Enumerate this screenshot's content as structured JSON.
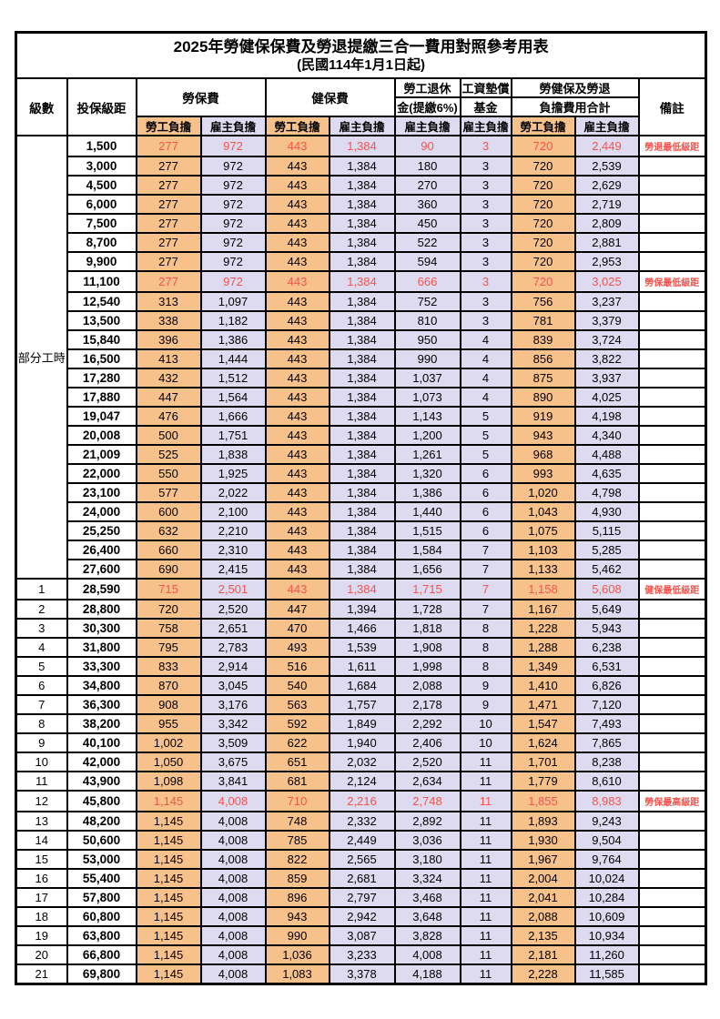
{
  "title": {
    "line1": "2025年勞健保保費及勞退提繳三合一費用對照參考用表",
    "line2": "(民國114年1月1日起)"
  },
  "colors": {
    "employee_column_bg": "#F7C18C",
    "employer_column_bg": "#DEDBF0",
    "highlight_text_red": "#F4534D",
    "grid_border": "#000000",
    "background": "#FFFFFF"
  },
  "header": {
    "level": "級數",
    "bracket": "投保級距",
    "labor_insurance": "勞保費",
    "health_insurance": "健保費",
    "pension_line1": "勞工退休",
    "pension_line2": "金(提繳6%)",
    "wage_fund_line1": "工資墊償",
    "wage_fund_line2": "基金",
    "total_line1": "勞健保及勞退",
    "total_line2": "負擔費用合計",
    "remark": "備註",
    "employee_share": "勞工負擔",
    "employer_share": "雇主負擔"
  },
  "table": {
    "part_time_label": "部分工時",
    "part_time_row_count": 23,
    "value_column_names": [
      "labor-ins-employee",
      "labor-ins-employer",
      "health-ins-employee",
      "health-ins-employer",
      "pension-employer",
      "wage-fund-employer",
      "total-employee",
      "total-employer"
    ],
    "rows": [
      {
        "level": null,
        "bracket": "1,500",
        "values": [
          "277",
          "972",
          "443",
          "1,384",
          "90",
          "3",
          "720",
          "2,449"
        ],
        "remark": "勞退最低級距",
        "red": true
      },
      {
        "level": null,
        "bracket": "3,000",
        "values": [
          "277",
          "972",
          "443",
          "1,384",
          "180",
          "3",
          "720",
          "2,539"
        ],
        "remark": "",
        "red": false
      },
      {
        "level": null,
        "bracket": "4,500",
        "values": [
          "277",
          "972",
          "443",
          "1,384",
          "270",
          "3",
          "720",
          "2,629"
        ],
        "remark": "",
        "red": false
      },
      {
        "level": null,
        "bracket": "6,000",
        "values": [
          "277",
          "972",
          "443",
          "1,384",
          "360",
          "3",
          "720",
          "2,719"
        ],
        "remark": "",
        "red": false
      },
      {
        "level": null,
        "bracket": "7,500",
        "values": [
          "277",
          "972",
          "443",
          "1,384",
          "450",
          "3",
          "720",
          "2,809"
        ],
        "remark": "",
        "red": false
      },
      {
        "level": null,
        "bracket": "8,700",
        "values": [
          "277",
          "972",
          "443",
          "1,384",
          "522",
          "3",
          "720",
          "2,881"
        ],
        "remark": "",
        "red": false
      },
      {
        "level": null,
        "bracket": "9,900",
        "values": [
          "277",
          "972",
          "443",
          "1,384",
          "594",
          "3",
          "720",
          "2,953"
        ],
        "remark": "",
        "red": false
      },
      {
        "level": null,
        "bracket": "11,100",
        "values": [
          "277",
          "972",
          "443",
          "1,384",
          "666",
          "3",
          "720",
          "3,025"
        ],
        "remark": "勞保最低級距",
        "red": true
      },
      {
        "level": null,
        "bracket": "12,540",
        "values": [
          "313",
          "1,097",
          "443",
          "1,384",
          "752",
          "3",
          "756",
          "3,237"
        ],
        "remark": "",
        "red": false
      },
      {
        "level": null,
        "bracket": "13,500",
        "values": [
          "338",
          "1,182",
          "443",
          "1,384",
          "810",
          "3",
          "781",
          "3,379"
        ],
        "remark": "",
        "red": false
      },
      {
        "level": null,
        "bracket": "15,840",
        "values": [
          "396",
          "1,386",
          "443",
          "1,384",
          "950",
          "4",
          "839",
          "3,724"
        ],
        "remark": "",
        "red": false
      },
      {
        "level": null,
        "bracket": "16,500",
        "values": [
          "413",
          "1,444",
          "443",
          "1,384",
          "990",
          "4",
          "856",
          "3,822"
        ],
        "remark": "",
        "red": false
      },
      {
        "level": null,
        "bracket": "17,280",
        "values": [
          "432",
          "1,512",
          "443",
          "1,384",
          "1,037",
          "4",
          "875",
          "3,937"
        ],
        "remark": "",
        "red": false
      },
      {
        "level": null,
        "bracket": "17,880",
        "values": [
          "447",
          "1,564",
          "443",
          "1,384",
          "1,073",
          "4",
          "890",
          "4,025"
        ],
        "remark": "",
        "red": false
      },
      {
        "level": null,
        "bracket": "19,047",
        "values": [
          "476",
          "1,666",
          "443",
          "1,384",
          "1,143",
          "5",
          "919",
          "4,198"
        ],
        "remark": "",
        "red": false
      },
      {
        "level": null,
        "bracket": "20,008",
        "values": [
          "500",
          "1,751",
          "443",
          "1,384",
          "1,200",
          "5",
          "943",
          "4,340"
        ],
        "remark": "",
        "red": false
      },
      {
        "level": null,
        "bracket": "21,009",
        "values": [
          "525",
          "1,838",
          "443",
          "1,384",
          "1,261",
          "5",
          "968",
          "4,488"
        ],
        "remark": "",
        "red": false
      },
      {
        "level": null,
        "bracket": "22,000",
        "values": [
          "550",
          "1,925",
          "443",
          "1,384",
          "1,320",
          "6",
          "993",
          "4,635"
        ],
        "remark": "",
        "red": false
      },
      {
        "level": null,
        "bracket": "23,100",
        "values": [
          "577",
          "2,022",
          "443",
          "1,384",
          "1,386",
          "6",
          "1,020",
          "4,798"
        ],
        "remark": "",
        "red": false
      },
      {
        "level": null,
        "bracket": "24,000",
        "values": [
          "600",
          "2,100",
          "443",
          "1,384",
          "1,440",
          "6",
          "1,043",
          "4,930"
        ],
        "remark": "",
        "red": false
      },
      {
        "level": null,
        "bracket": "25,250",
        "values": [
          "632",
          "2,210",
          "443",
          "1,384",
          "1,515",
          "6",
          "1,075",
          "5,115"
        ],
        "remark": "",
        "red": false
      },
      {
        "level": null,
        "bracket": "26,400",
        "values": [
          "660",
          "2,310",
          "443",
          "1,384",
          "1,584",
          "7",
          "1,103",
          "5,285"
        ],
        "remark": "",
        "red": false
      },
      {
        "level": null,
        "bracket": "27,600",
        "values": [
          "690",
          "2,415",
          "443",
          "1,384",
          "1,656",
          "7",
          "1,133",
          "5,462"
        ],
        "remark": "",
        "red": false
      },
      {
        "level": "1",
        "bracket": "28,590",
        "values": [
          "715",
          "2,501",
          "443",
          "1,384",
          "1,715",
          "7",
          "1,158",
          "5,608"
        ],
        "remark": "健保最低級距",
        "red": true
      },
      {
        "level": "2",
        "bracket": "28,800",
        "values": [
          "720",
          "2,520",
          "447",
          "1,394",
          "1,728",
          "7",
          "1,167",
          "5,649"
        ],
        "remark": "",
        "red": false
      },
      {
        "level": "3",
        "bracket": "30,300",
        "values": [
          "758",
          "2,651",
          "470",
          "1,466",
          "1,818",
          "8",
          "1,228",
          "5,943"
        ],
        "remark": "",
        "red": false
      },
      {
        "level": "4",
        "bracket": "31,800",
        "values": [
          "795",
          "2,783",
          "493",
          "1,539",
          "1,908",
          "8",
          "1,288",
          "6,238"
        ],
        "remark": "",
        "red": false
      },
      {
        "level": "5",
        "bracket": "33,300",
        "values": [
          "833",
          "2,914",
          "516",
          "1,611",
          "1,998",
          "8",
          "1,349",
          "6,531"
        ],
        "remark": "",
        "red": false
      },
      {
        "level": "6",
        "bracket": "34,800",
        "values": [
          "870",
          "3,045",
          "540",
          "1,684",
          "2,088",
          "9",
          "1,410",
          "6,826"
        ],
        "remark": "",
        "red": false
      },
      {
        "level": "7",
        "bracket": "36,300",
        "values": [
          "908",
          "3,176",
          "563",
          "1,757",
          "2,178",
          "9",
          "1,471",
          "7,120"
        ],
        "remark": "",
        "red": false
      },
      {
        "level": "8",
        "bracket": "38,200",
        "values": [
          "955",
          "3,342",
          "592",
          "1,849",
          "2,292",
          "10",
          "1,547",
          "7,493"
        ],
        "remark": "",
        "red": false
      },
      {
        "level": "9",
        "bracket": "40,100",
        "values": [
          "1,002",
          "3,509",
          "622",
          "1,940",
          "2,406",
          "10",
          "1,624",
          "7,865"
        ],
        "remark": "",
        "red": false
      },
      {
        "level": "10",
        "bracket": "42,000",
        "values": [
          "1,050",
          "3,675",
          "651",
          "2,032",
          "2,520",
          "11",
          "1,701",
          "8,238"
        ],
        "remark": "",
        "red": false
      },
      {
        "level": "11",
        "bracket": "43,900",
        "values": [
          "1,098",
          "3,841",
          "681",
          "2,124",
          "2,634",
          "11",
          "1,779",
          "8,610"
        ],
        "remark": "",
        "red": false
      },
      {
        "level": "12",
        "bracket": "45,800",
        "values": [
          "1,145",
          "4,008",
          "710",
          "2,216",
          "2,748",
          "11",
          "1,855",
          "8,983"
        ],
        "remark": "勞保最高級距",
        "red": true
      },
      {
        "level": "13",
        "bracket": "48,200",
        "values": [
          "1,145",
          "4,008",
          "748",
          "2,332",
          "2,892",
          "11",
          "1,893",
          "9,243"
        ],
        "remark": "",
        "red": false
      },
      {
        "level": "14",
        "bracket": "50,600",
        "values": [
          "1,145",
          "4,008",
          "785",
          "2,449",
          "3,036",
          "11",
          "1,930",
          "9,504"
        ],
        "remark": "",
        "red": false
      },
      {
        "level": "15",
        "bracket": "53,000",
        "values": [
          "1,145",
          "4,008",
          "822",
          "2,565",
          "3,180",
          "11",
          "1,967",
          "9,764"
        ],
        "remark": "",
        "red": false
      },
      {
        "level": "16",
        "bracket": "55,400",
        "values": [
          "1,145",
          "4,008",
          "859",
          "2,681",
          "3,324",
          "11",
          "2,004",
          "10,024"
        ],
        "remark": "",
        "red": false
      },
      {
        "level": "17",
        "bracket": "57,800",
        "values": [
          "1,145",
          "4,008",
          "896",
          "2,797",
          "3,468",
          "11",
          "2,041",
          "10,284"
        ],
        "remark": "",
        "red": false
      },
      {
        "level": "18",
        "bracket": "60,800",
        "values": [
          "1,145",
          "4,008",
          "943",
          "2,942",
          "3,648",
          "11",
          "2,088",
          "10,609"
        ],
        "remark": "",
        "red": false
      },
      {
        "level": "19",
        "bracket": "63,800",
        "values": [
          "1,145",
          "4,008",
          "990",
          "3,087",
          "3,828",
          "11",
          "2,135",
          "10,934"
        ],
        "remark": "",
        "red": false
      },
      {
        "level": "20",
        "bracket": "66,800",
        "values": [
          "1,145",
          "4,008",
          "1,036",
          "3,233",
          "4,008",
          "11",
          "2,181",
          "11,260"
        ],
        "remark": "",
        "red": false
      },
      {
        "level": "21",
        "bracket": "69,800",
        "values": [
          "1,145",
          "4,008",
          "1,083",
          "3,378",
          "4,188",
          "11",
          "2,228",
          "11,585"
        ],
        "remark": "",
        "red": false
      }
    ]
  }
}
